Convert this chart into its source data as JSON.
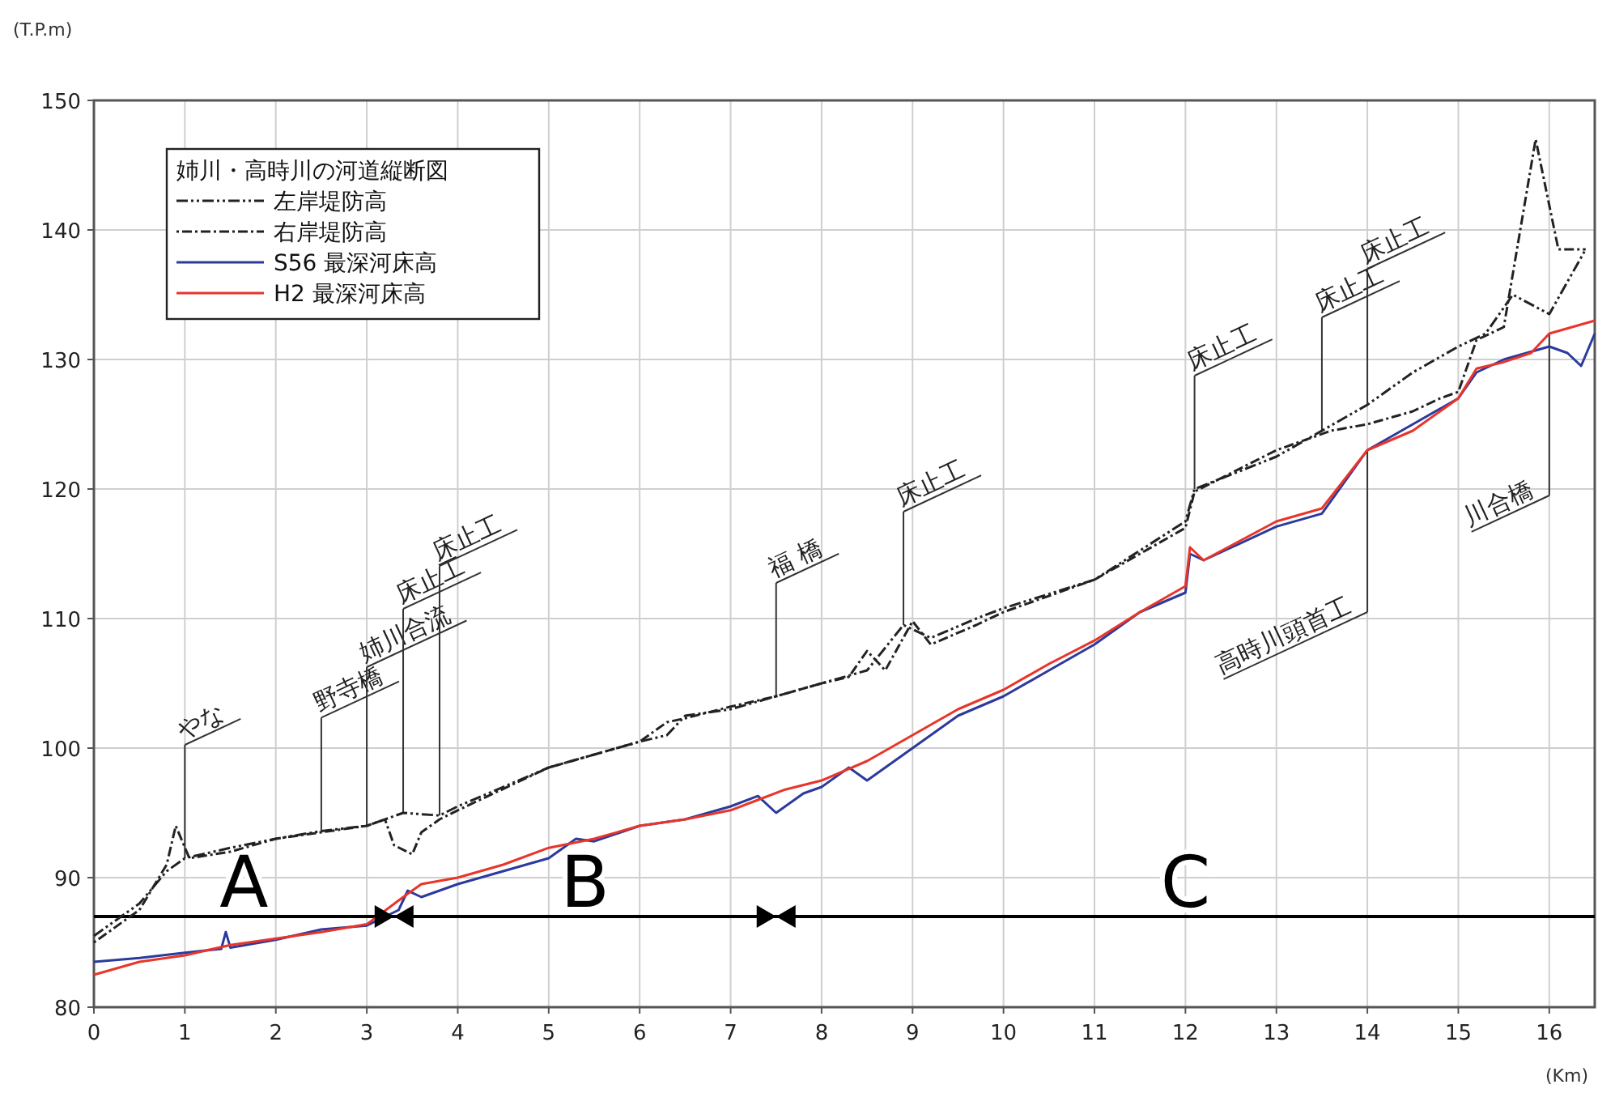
{
  "chart_data": {
    "type": "line",
    "ylabel": "(T.P.m)",
    "xlabel": "(Km)",
    "legend_title": "姉川・高時川の河道縦断図",
    "legend": "top left",
    "grid": true,
    "xlim": [
      0,
      16.5
    ],
    "xticks": [
      0,
      1,
      2,
      3,
      4,
      5,
      6,
      7,
      8,
      9,
      10,
      11,
      12,
      13,
      14,
      15,
      16
    ],
    "ylim": [
      80,
      150
    ],
    "yticks": [
      80,
      90,
      100,
      110,
      120,
      130,
      140,
      150
    ],
    "series": [
      {
        "name": "左岸堤防高",
        "color": "#222222",
        "line_style": "dashed",
        "x": [
          0,
          0.5,
          0.8,
          1.0,
          1.5,
          2,
          2.5,
          3,
          3.4,
          3.8,
          4,
          5,
          6,
          6.3,
          6.5,
          7,
          7.5,
          8,
          8.5,
          8.9,
          9.2,
          9.7,
          10,
          11,
          12,
          12.1,
          13,
          14,
          14.5,
          15,
          15.3,
          15.6,
          16,
          16.4
        ],
        "values": [
          85.5,
          88,
          90.5,
          91.5,
          92.3,
          93,
          93.6,
          94,
          95,
          94.8,
          95.5,
          98.5,
          100.5,
          101,
          102.5,
          103,
          104,
          105,
          106,
          109.5,
          108.5,
          110,
          110.8,
          113,
          117.5,
          120,
          122.5,
          126.5,
          129,
          131,
          132,
          135,
          133.5,
          138.5
        ]
      },
      {
        "name": "右岸堤防高",
        "color": "#222222",
        "line_style": "dotted",
        "x": [
          0,
          0.5,
          0.8,
          0.9,
          1.05,
          1.5,
          2,
          2.5,
          3,
          3.2,
          3.3,
          3.5,
          3.6,
          3.8,
          4,
          5,
          6,
          6.3,
          6.5,
          7,
          7.5,
          8,
          8.3,
          8.5,
          8.7,
          9,
          9.2,
          9.7,
          10,
          11,
          12,
          12.1,
          13,
          13.6,
          14,
          14.5,
          14.8,
          15,
          15.2,
          15.5,
          15.85,
          16.1,
          16.4
        ],
        "values": [
          85,
          87.5,
          91,
          94,
          91.5,
          92,
          93,
          93.5,
          94,
          94.5,
          92.5,
          91.8,
          93.5,
          94.5,
          95.2,
          98.5,
          100.5,
          102,
          102.3,
          103.2,
          104,
          105,
          105.5,
          107.5,
          106,
          109.8,
          108,
          109.5,
          110.5,
          113,
          117,
          119.8,
          123,
          124.5,
          125,
          126,
          127,
          127.5,
          131.5,
          132.5,
          147,
          138.5,
          138.5
        ]
      },
      {
        "name": "S56 最深河床高",
        "color": "#2b3a9c",
        "line_style": "solid",
        "x": [
          0,
          0.5,
          1,
          1.4,
          1.45,
          1.5,
          2,
          2.5,
          3,
          3.35,
          3.45,
          3.6,
          4,
          4.5,
          5,
          5.3,
          5.5,
          6,
          6.5,
          7,
          7.3,
          7.5,
          7.6,
          7.8,
          8,
          8.3,
          8.5,
          9,
          9.5,
          10,
          10.5,
          11,
          11.5,
          12,
          12.05,
          12.2,
          13,
          13.5,
          14,
          14.5,
          15,
          15.2,
          15.5,
          16,
          16.2,
          16.35,
          16.5
        ],
        "values": [
          83.5,
          83.8,
          84.2,
          84.5,
          85.8,
          84.6,
          85.2,
          86,
          86.3,
          87.5,
          89,
          88.5,
          89.5,
          90.5,
          91.5,
          93,
          92.8,
          94,
          94.5,
          95.5,
          96.3,
          95,
          95.5,
          96.5,
          97,
          98.5,
          97.5,
          100,
          102.5,
          104,
          106,
          108,
          110.5,
          112,
          115,
          114.5,
          117.1,
          118.1,
          123,
          125,
          127,
          129,
          130,
          131,
          130.5,
          129.5,
          132
        ]
      },
      {
        "name": "H2 最深河床高",
        "color": "#e8352a",
        "line_style": "solid",
        "x": [
          0,
          0.5,
          1,
          1.5,
          2,
          2.5,
          3,
          3.4,
          3.6,
          4,
          4.5,
          5,
          5.5,
          6,
          6.5,
          7,
          7.3,
          7.6,
          8,
          8.5,
          9,
          9.5,
          10,
          10.5,
          11,
          11.5,
          12,
          12.05,
          12.2,
          13,
          13.5,
          14,
          14.5,
          15,
          15.2,
          15.5,
          15.8,
          16,
          16.5
        ],
        "values": [
          82.5,
          83.5,
          84,
          84.8,
          85.3,
          85.8,
          86.4,
          88.5,
          89.5,
          90,
          91,
          92.3,
          93,
          94,
          94.5,
          95.2,
          96,
          96.8,
          97.5,
          99,
          101,
          103,
          104.5,
          106.5,
          108.3,
          110.5,
          112.5,
          115.5,
          114.5,
          117.5,
          118.5,
          123,
          124.5,
          127,
          129.3,
          129.8,
          130.5,
          132,
          133
        ]
      },
      {
        "type": "scatter",
        "color": "#000000",
        "marker": "triangle",
        "x": [
          3.3,
          7.5
        ],
        "values": [
          87,
          87
        ]
      }
    ],
    "ref_lines": [
      {
        "axis": "y",
        "value": 87,
        "color": "#000000",
        "line_style": "solid"
      }
    ],
    "annotations": [
      {
        "text": "やな",
        "x": 1.0,
        "y": 91.5
      },
      {
        "text": "野寺橋",
        "x": 2.5,
        "y": 93.6
      },
      {
        "text": "姉川合流",
        "x": 3.0,
        "y": 94
      },
      {
        "text": "床止工",
        "x": 3.4,
        "y": 95
      },
      {
        "text": "床止工",
        "x": 3.8,
        "y": 94.8
      },
      {
        "text": "福 橋",
        "x": 7.5,
        "y": 104
      },
      {
        "text": "床止工",
        "x": 8.9,
        "y": 109.5
      },
      {
        "text": "床止工",
        "x": 12.1,
        "y": 120
      },
      {
        "text": "床止工",
        "x": 13.5,
        "y": 124.5
      },
      {
        "text": "床止工",
        "x": 14.0,
        "y": 126.5
      },
      {
        "text": "高時川頭首工",
        "x": 14.0,
        "y": 123
      },
      {
        "text": "川合橋",
        "x": 16.0,
        "y": 132
      },
      {
        "text": "A",
        "x": 1.65,
        "y": 87
      },
      {
        "text": "B",
        "x": 5.4,
        "y": 87
      },
      {
        "text": "C",
        "x": 12.0,
        "y": 87
      }
    ]
  }
}
